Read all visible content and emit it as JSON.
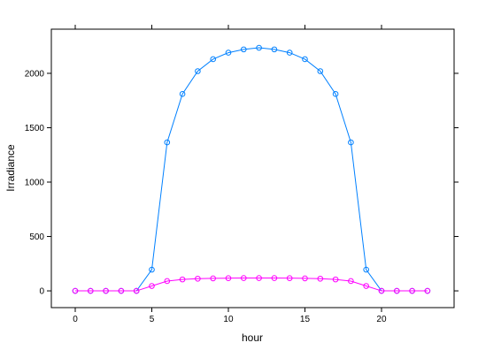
{
  "chart_data": {
    "type": "line",
    "x_label": "hour",
    "y_label": "Irradiance",
    "x": [
      0,
      1,
      2,
      3,
      4,
      5,
      6,
      7,
      8,
      9,
      10,
      11,
      12,
      13,
      14,
      15,
      16,
      17,
      18,
      19,
      20,
      21,
      22,
      23
    ],
    "series": [
      {
        "color": "#0080ff",
        "values": [
          0,
          0,
          0,
          0,
          0,
          195,
          1365,
          1810,
          2020,
          2130,
          2190,
          2220,
          2235,
          2220,
          2190,
          2130,
          2020,
          1810,
          1365,
          195,
          0,
          0,
          0,
          0
        ]
      },
      {
        "color": "#ff00ff",
        "values": [
          0,
          0,
          0,
          0,
          0,
          45,
          90,
          105,
          112,
          115,
          117,
          118,
          118,
          118,
          117,
          115,
          112,
          105,
          90,
          45,
          0,
          0,
          0,
          0
        ]
      }
    ],
    "xlim": [
      -1.56,
      24.74
    ],
    "ylim": [
      -154,
      2406
    ],
    "xticks": [
      0,
      5,
      10,
      15,
      20
    ],
    "yticks": [
      0,
      500,
      1000,
      1500,
      2000
    ]
  }
}
